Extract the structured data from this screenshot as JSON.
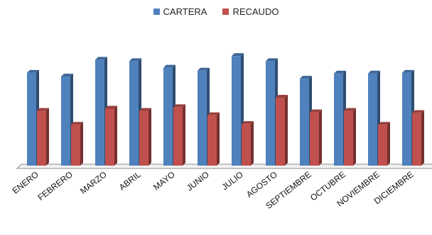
{
  "chart_data": {
    "type": "bar",
    "categories": [
      "ENERO",
      "FEBRERO",
      "MARZO",
      "ABRIL",
      "MAYO",
      "JUNIO",
      "JULIO",
      "AGOSTO",
      "SEPTIEMBRE",
      "OCTUBRE",
      "NOVIEMBRE",
      "DICIEMBRE"
    ],
    "series": [
      {
        "name": "CARTERA",
        "color": "#4f81bd",
        "values": [
          127,
          122,
          145,
          143,
          134,
          130,
          150,
          143,
          119,
          126,
          126,
          127
        ]
      },
      {
        "name": "RECAUDO",
        "color": "#c0504d",
        "values": [
          75,
          56,
          78,
          75,
          80,
          69,
          57,
          93,
          73,
          75,
          56,
          72
        ]
      }
    ],
    "ylim": [
      0,
      155
    ],
    "grid": false,
    "legend_position": "top"
  }
}
